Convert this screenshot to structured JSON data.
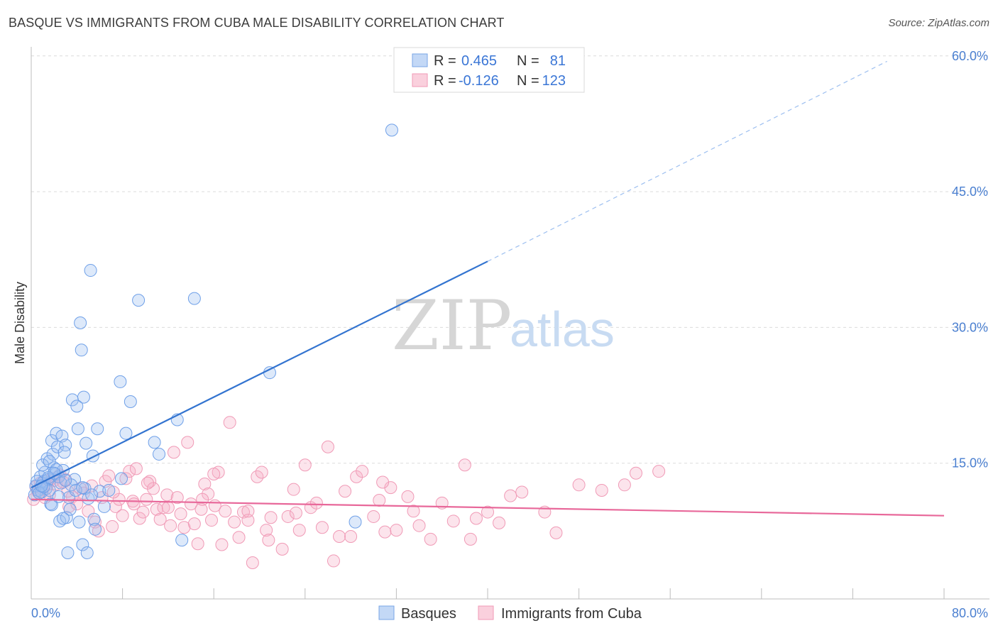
{
  "title": "BASQUE VS IMMIGRANTS FROM CUBA MALE DISABILITY CORRELATION CHART",
  "source": "Source: ZipAtlas.com",
  "watermark": {
    "zip": "ZIP",
    "atlas": "atlas"
  },
  "chart_data": {
    "type": "scatter",
    "ylabel": "Male Disability",
    "xlabel": "",
    "x_tick_labels": [
      "0.0%",
      "80.0%"
    ],
    "y_tick_labels": [
      "15.0%",
      "30.0%",
      "45.0%",
      "60.0%"
    ],
    "xlim": [
      0,
      80
    ],
    "ylim": [
      0,
      60
    ],
    "legend_bottom": [
      {
        "label": "Basques",
        "color": "#9dbff0"
      },
      {
        "label": "Immigrants from Cuba",
        "color": "#f5b2c8"
      }
    ],
    "stats_legend": {
      "r_label": "R =",
      "n_label": "N =",
      "rows": [
        {
          "r": "0.465",
          "n": "81"
        },
        {
          "r": "-0.126",
          "n": "123"
        }
      ]
    },
    "series": [
      {
        "name": "Basques",
        "color": "#6fa0e8",
        "trend_color": "#3374d0",
        "trend": {
          "x1": 0,
          "y1": 12.3,
          "x2": 40,
          "y2": 37.3,
          "dashed_to_x": 75,
          "dashed_to_y": 59.4
        },
        "points": [
          [
            0.3,
            11.5
          ],
          [
            0.4,
            12.5
          ],
          [
            0.6,
            12.0
          ],
          [
            0.8,
            13.5
          ],
          [
            0.9,
            11.8
          ],
          [
            1.0,
            12.8
          ],
          [
            1.1,
            13.0
          ],
          [
            1.2,
            14.0
          ],
          [
            1.3,
            12.2
          ],
          [
            1.4,
            15.5
          ],
          [
            1.5,
            13.2
          ],
          [
            1.6,
            12.0
          ],
          [
            1.7,
            10.5
          ],
          [
            1.8,
            17.5
          ],
          [
            1.9,
            16.0
          ],
          [
            2.0,
            14.5
          ],
          [
            2.1,
            13.8
          ],
          [
            2.2,
            18.3
          ],
          [
            2.3,
            16.8
          ],
          [
            2.4,
            13.5
          ],
          [
            2.5,
            8.6
          ],
          [
            2.6,
            12.8
          ],
          [
            2.7,
            18.0
          ],
          [
            2.8,
            14.2
          ],
          [
            3.0,
            17.0
          ],
          [
            3.1,
            9.0
          ],
          [
            3.2,
            5.1
          ],
          [
            3.3,
            11.2
          ],
          [
            3.4,
            9.9
          ],
          [
            3.6,
            22.0
          ],
          [
            3.8,
            13.2
          ],
          [
            4.0,
            21.3
          ],
          [
            4.1,
            18.8
          ],
          [
            4.2,
            8.5
          ],
          [
            4.3,
            30.5
          ],
          [
            4.4,
            27.5
          ],
          [
            4.5,
            6.0
          ],
          [
            4.6,
            22.3
          ],
          [
            4.7,
            12.2
          ],
          [
            4.8,
            17.2
          ],
          [
            4.9,
            5.1
          ],
          [
            5.2,
            36.3
          ],
          [
            5.4,
            15.8
          ],
          [
            5.5,
            8.8
          ],
          [
            5.6,
            7.7
          ],
          [
            5.8,
            18.8
          ],
          [
            6.0,
            11.9
          ],
          [
            7.8,
            24.0
          ],
          [
            7.9,
            13.3
          ],
          [
            8.3,
            18.3
          ],
          [
            8.7,
            21.8
          ],
          [
            9.4,
            33.0
          ],
          [
            10.8,
            17.3
          ],
          [
            11.2,
            16.0
          ],
          [
            12.8,
            19.8
          ],
          [
            13.2,
            6.5
          ],
          [
            14.3,
            33.2
          ],
          [
            20.9,
            25.0
          ],
          [
            31.6,
            51.8
          ],
          [
            28.4,
            8.5
          ],
          [
            1.0,
            14.8
          ],
          [
            1.6,
            15.2
          ],
          [
            2.2,
            14.3
          ],
          [
            2.9,
            16.2
          ],
          [
            3.5,
            12.6
          ],
          [
            0.5,
            13.0
          ],
          [
            0.7,
            11.7
          ],
          [
            1.1,
            12.4
          ],
          [
            1.8,
            10.4
          ],
          [
            2.4,
            11.3
          ],
          [
            2.8,
            8.9
          ],
          [
            3.9,
            12.0
          ],
          [
            5.0,
            11.1
          ],
          [
            6.4,
            10.2
          ],
          [
            1.5,
            13.4
          ],
          [
            0.9,
            12.5
          ],
          [
            2.0,
            13.9
          ],
          [
            3.0,
            13.1
          ],
          [
            4.5,
            12.3
          ],
          [
            5.3,
            11.5
          ],
          [
            6.8,
            12.0
          ]
        ]
      },
      {
        "name": "Immigrants from Cuba",
        "color": "#f09ab6",
        "trend_color": "#e8689a",
        "trend": {
          "x1": 0,
          "y1": 11.0,
          "x2": 80,
          "y2": 9.2
        },
        "points": [
          [
            0.2,
            11.0
          ],
          [
            0.4,
            12.4
          ],
          [
            0.6,
            11.8
          ],
          [
            0.8,
            12.8
          ],
          [
            1.0,
            12.1
          ],
          [
            1.2,
            13.0
          ],
          [
            1.4,
            12.6
          ],
          [
            1.6,
            11.5
          ],
          [
            1.8,
            13.3
          ],
          [
            2.0,
            13.1
          ],
          [
            2.2,
            12.7
          ],
          [
            2.5,
            13.7
          ],
          [
            2.8,
            12.9
          ],
          [
            3.0,
            13.2
          ],
          [
            3.3,
            10.2
          ],
          [
            3.6,
            11.3
          ],
          [
            4.0,
            10.5
          ],
          [
            4.3,
            12.2
          ],
          [
            4.6,
            11.7
          ],
          [
            5.0,
            9.7
          ],
          [
            5.3,
            12.5
          ],
          [
            5.6,
            8.5
          ],
          [
            5.9,
            7.5
          ],
          [
            6.2,
            11.2
          ],
          [
            6.5,
            13.0
          ],
          [
            6.8,
            13.6
          ],
          [
            7.1,
            8.0
          ],
          [
            7.4,
            10.2
          ],
          [
            7.7,
            11.0
          ],
          [
            8.0,
            9.2
          ],
          [
            8.3,
            13.3
          ],
          [
            8.6,
            14.1
          ],
          [
            8.9,
            10.8
          ],
          [
            9.2,
            14.4
          ],
          [
            9.5,
            8.9
          ],
          [
            9.8,
            9.6
          ],
          [
            10.1,
            11.0
          ],
          [
            10.4,
            13.0
          ],
          [
            10.7,
            12.2
          ],
          [
            11.0,
            9.9
          ],
          [
            11.3,
            8.8
          ],
          [
            11.6,
            10.1
          ],
          [
            11.9,
            11.5
          ],
          [
            12.2,
            8.1
          ],
          [
            12.5,
            16.2
          ],
          [
            12.8,
            11.2
          ],
          [
            13.1,
            9.4
          ],
          [
            13.4,
            7.9
          ],
          [
            13.7,
            17.3
          ],
          [
            14.0,
            10.5
          ],
          [
            14.3,
            8.3
          ],
          [
            14.6,
            6.1
          ],
          [
            14.9,
            9.9
          ],
          [
            15.2,
            12.7
          ],
          [
            15.5,
            11.6
          ],
          [
            15.8,
            8.7
          ],
          [
            16.1,
            10.3
          ],
          [
            16.4,
            14.0
          ],
          [
            16.7,
            6.0
          ],
          [
            17.0,
            9.7
          ],
          [
            17.4,
            19.5
          ],
          [
            17.8,
            8.5
          ],
          [
            18.2,
            6.8
          ],
          [
            18.6,
            9.6
          ],
          [
            19.0,
            8.7
          ],
          [
            19.4,
            4.0
          ],
          [
            19.8,
            13.5
          ],
          [
            20.2,
            14.0
          ],
          [
            20.6,
            7.6
          ],
          [
            21.0,
            9.0
          ],
          [
            22.0,
            5.5
          ],
          [
            22.5,
            9.1
          ],
          [
            23.0,
            12.1
          ],
          [
            23.5,
            7.6
          ],
          [
            24.0,
            14.8
          ],
          [
            24.5,
            10.1
          ],
          [
            25.0,
            10.6
          ],
          [
            25.5,
            7.9
          ],
          [
            26.0,
            16.8
          ],
          [
            26.5,
            4.2
          ],
          [
            27.0,
            6.9
          ],
          [
            27.5,
            11.9
          ],
          [
            28.0,
            6.9
          ],
          [
            28.5,
            13.5
          ],
          [
            29.0,
            14.1
          ],
          [
            30.0,
            9.1
          ],
          [
            30.5,
            10.9
          ],
          [
            31.0,
            7.4
          ],
          [
            31.5,
            12.3
          ],
          [
            32.0,
            7.6
          ],
          [
            33.0,
            11.3
          ],
          [
            33.5,
            9.7
          ],
          [
            34.0,
            8.1
          ],
          [
            35.0,
            6.6
          ],
          [
            36.0,
            10.6
          ],
          [
            37.0,
            8.6
          ],
          [
            38.0,
            14.8
          ],
          [
            38.5,
            6.6
          ],
          [
            39.0,
            8.9
          ],
          [
            40.0,
            9.6
          ],
          [
            41.0,
            8.4
          ],
          [
            42.0,
            11.4
          ],
          [
            43.0,
            11.8
          ],
          [
            45.0,
            9.6
          ],
          [
            46.0,
            7.3
          ],
          [
            48.0,
            12.6
          ],
          [
            50.0,
            12.0
          ],
          [
            52.0,
            12.6
          ],
          [
            53.0,
            13.9
          ],
          [
            55.0,
            14.1
          ],
          [
            19.0,
            9.7
          ],
          [
            16.0,
            13.8
          ],
          [
            20.8,
            6.5
          ],
          [
            12.0,
            10.1
          ],
          [
            10.2,
            12.8
          ],
          [
            9.0,
            10.5
          ],
          [
            7.2,
            11.8
          ],
          [
            15.0,
            11.0
          ],
          [
            23.2,
            9.5
          ],
          [
            30.8,
            12.9
          ],
          [
            3.2,
            11.9
          ],
          [
            1.2,
            11.2
          ],
          [
            2.4,
            13.5
          ]
        ]
      }
    ]
  }
}
